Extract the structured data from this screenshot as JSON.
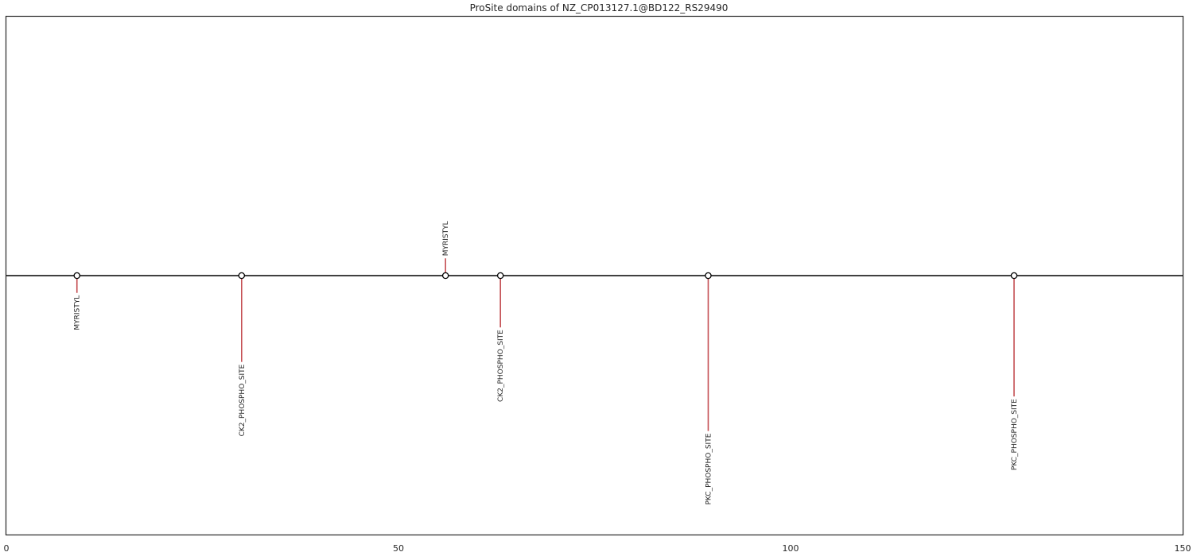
{
  "chart_data": {
    "type": "lollipop",
    "title": "ProSite domains of NZ_CP013127.1@BD122_RS29490",
    "xlabel": "",
    "ylabel": "",
    "xlim": [
      0,
      150
    ],
    "ylim": [
      -1.5,
      1.5
    ],
    "xticks": [
      "0",
      "50",
      "100",
      "150"
    ],
    "grid": false,
    "colors": {
      "stem": "#c44e52",
      "axis": "#000000",
      "frame": "#262626",
      "marker_face": "#ffffff",
      "marker_edge": "#000000"
    },
    "sites": [
      {
        "label": "MYRISTYL",
        "position": 9,
        "height": -0.1
      },
      {
        "label": "CK2_PHOSPHO_SITE",
        "position": 30,
        "height": -0.5
      },
      {
        "label": "MYRISTYL",
        "position": 56,
        "height": 0.1
      },
      {
        "label": "CK2_PHOSPHO_SITE",
        "position": 63,
        "height": -0.3
      },
      {
        "label": "PKC_PHOSPHO_SITE",
        "position": 89.5,
        "height": -0.9
      },
      {
        "label": "PKC_PHOSPHO_SITE",
        "position": 128.5,
        "height": -0.7
      }
    ]
  }
}
